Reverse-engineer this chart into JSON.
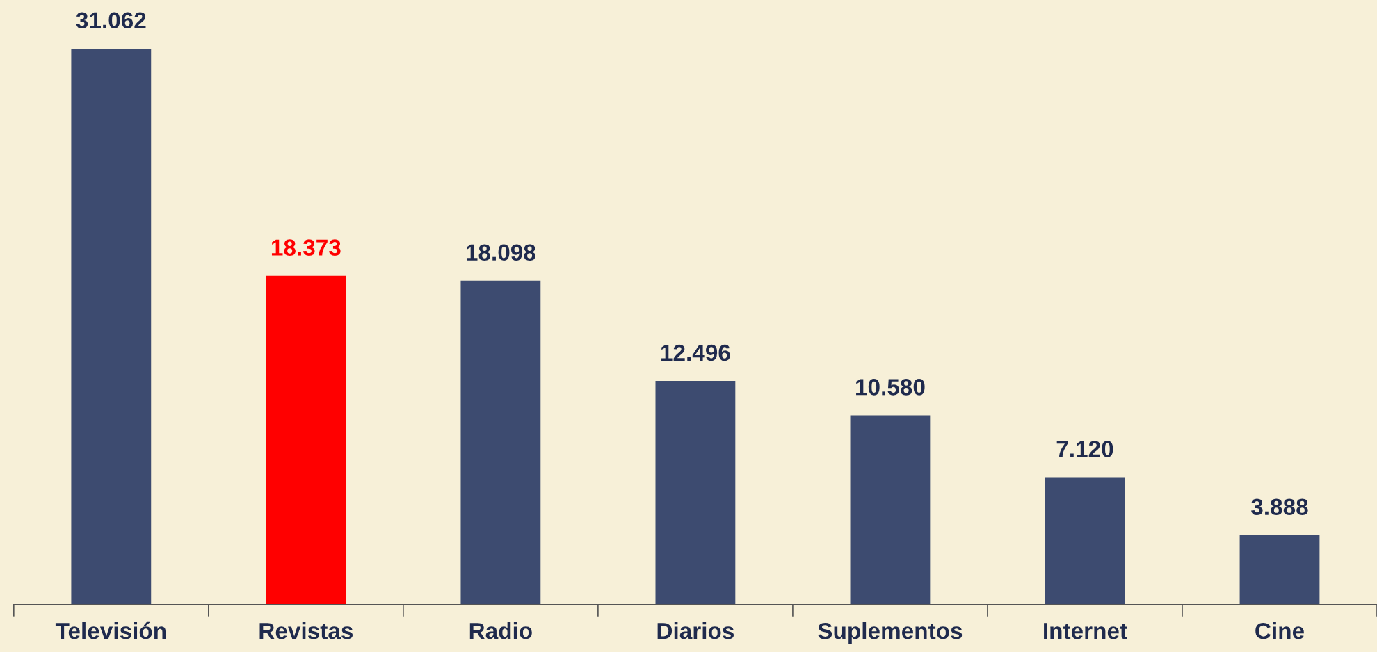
{
  "chart_data": {
    "type": "bar",
    "categories": [
      "Televisión",
      "Revistas",
      "Radio",
      "Diarios",
      "Suplementos",
      "Internet",
      "Cine"
    ],
    "values": [
      31062,
      18373,
      18098,
      12496,
      10580,
      7120,
      3888
    ],
    "value_labels": [
      "31.062",
      "18.373",
      "18.098",
      "12.496",
      "10.580",
      "7.120",
      "3.888"
    ],
    "colors": [
      "#3d4b70",
      "#ff0000",
      "#3d4b70",
      "#3d4b70",
      "#3d4b70",
      "#3d4b70",
      "#3d4b70"
    ],
    "grid": false,
    "legend": false
  }
}
